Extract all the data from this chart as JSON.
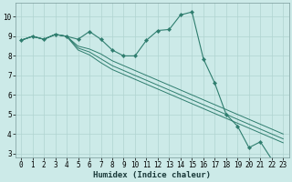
{
  "xlabel": "Humidex (Indice chaleur)",
  "ylabel": "",
  "bg_color": "#cceae8",
  "grid_color": "#b0d4d0",
  "line_color": "#2e7d6e",
  "xlim": [
    -0.5,
    23.5
  ],
  "ylim": [
    2.8,
    10.7
  ],
  "yticks": [
    3,
    4,
    5,
    6,
    7,
    8,
    9,
    10
  ],
  "xticks": [
    0,
    1,
    2,
    3,
    4,
    5,
    6,
    7,
    8,
    9,
    10,
    11,
    12,
    13,
    14,
    15,
    16,
    17,
    18,
    19,
    20,
    21,
    22,
    23
  ],
  "series": [
    {
      "x": [
        0,
        1,
        2,
        3,
        4,
        5,
        6,
        7,
        8,
        9,
        10,
        11,
        12,
        13,
        14,
        15,
        16,
        17,
        18,
        19,
        20,
        21,
        22
      ],
      "y": [
        8.8,
        9.0,
        8.85,
        9.1,
        9.0,
        8.85,
        9.25,
        8.85,
        8.3,
        8.0,
        8.0,
        8.8,
        9.3,
        9.35,
        10.1,
        10.25,
        7.85,
        6.6,
        5.0,
        4.4,
        3.3,
        3.6,
        2.7
      ],
      "marker": true
    },
    {
      "x": [
        0,
        1,
        2,
        3,
        4,
        5,
        6,
        7,
        8,
        9,
        10,
        11,
        12,
        13,
        14,
        15,
        16,
        17,
        18,
        19,
        20,
        21,
        22,
        23
      ],
      "y": [
        8.8,
        9.0,
        8.85,
        9.1,
        9.0,
        8.5,
        8.35,
        8.1,
        7.75,
        7.5,
        7.25,
        7.0,
        6.75,
        6.5,
        6.25,
        6.0,
        5.75,
        5.5,
        5.25,
        5.0,
        4.75,
        4.5,
        4.25,
        4.0
      ],
      "marker": false
    },
    {
      "x": [
        0,
        1,
        2,
        3,
        4,
        5,
        6,
        7,
        8,
        9,
        10,
        11,
        12,
        13,
        14,
        15,
        16,
        17,
        18,
        19,
        20,
        21,
        22,
        23
      ],
      "y": [
        8.8,
        9.0,
        8.85,
        9.1,
        9.0,
        8.4,
        8.2,
        7.85,
        7.5,
        7.25,
        7.0,
        6.75,
        6.5,
        6.25,
        6.0,
        5.75,
        5.5,
        5.25,
        5.0,
        4.75,
        4.5,
        4.25,
        4.0,
        3.75
      ],
      "marker": false
    },
    {
      "x": [
        0,
        1,
        2,
        3,
        4,
        5,
        6,
        7,
        8,
        9,
        10,
        11,
        12,
        13,
        14,
        15,
        16,
        17,
        18,
        19,
        20,
        21,
        22,
        23
      ],
      "y": [
        8.8,
        9.0,
        8.85,
        9.1,
        9.0,
        8.3,
        8.05,
        7.65,
        7.3,
        7.05,
        6.8,
        6.55,
        6.3,
        6.05,
        5.8,
        5.55,
        5.3,
        5.05,
        4.8,
        4.55,
        4.3,
        4.05,
        3.8,
        3.55
      ],
      "marker": false
    }
  ]
}
